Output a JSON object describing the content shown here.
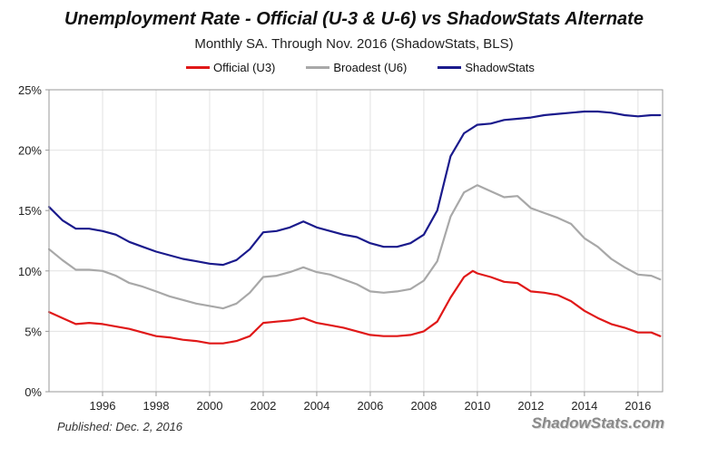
{
  "header": {
    "title": "Unemployment Rate - Official (U-3 & U-6) vs ShadowStats Alternate",
    "subtitle": "Monthly SA. Through Nov. 2016  (ShadowStats, BLS)"
  },
  "footer": {
    "published": "Published: Dec. 2, 2016",
    "brand": "ShadowStats.com"
  },
  "colors": {
    "u3": "#e01818",
    "u6": "#a8a8a8",
    "shadow": "#1a1a8c"
  },
  "chart_data": {
    "type": "line",
    "title": "Unemployment Rate - Official (U-3 & U-6) vs ShadowStats Alternate",
    "subtitle": "Monthly SA. Through Nov. 2016  (ShadowStats, BLS)",
    "xlabel": "",
    "ylabel": "",
    "xlim": [
      1994.0,
      2016.92
    ],
    "ylim": [
      0,
      25
    ],
    "grid": true,
    "legend": "top",
    "x_ticks": [
      1996,
      1998,
      2000,
      2002,
      2004,
      2006,
      2008,
      2010,
      2012,
      2014,
      2016
    ],
    "x_tick_labels": [
      "1996",
      "1998",
      "2000",
      "2002",
      "2004",
      "2006",
      "2008",
      "2010",
      "2012",
      "2014",
      "2016"
    ],
    "y_ticks": [
      0,
      5,
      10,
      15,
      20,
      25
    ],
    "y_tick_labels": [
      "0%",
      "5%",
      "10%",
      "15%",
      "20%",
      "25%"
    ],
    "series": [
      {
        "name": "Official (U3)",
        "x": [
          1994.0,
          1994.5,
          1995.0,
          1995.5,
          1996.0,
          1996.5,
          1997.0,
          1997.5,
          1998.0,
          1998.5,
          1999.0,
          1999.5,
          2000.0,
          2000.5,
          2001.0,
          2001.5,
          2002.0,
          2002.5,
          2003.0,
          2003.5,
          2004.0,
          2004.5,
          2005.0,
          2005.5,
          2006.0,
          2006.5,
          2007.0,
          2007.5,
          2008.0,
          2008.5,
          2009.0,
          2009.5,
          2009.83,
          2010.0,
          2010.5,
          2011.0,
          2011.5,
          2012.0,
          2012.5,
          2013.0,
          2013.5,
          2014.0,
          2014.5,
          2015.0,
          2015.5,
          2016.0,
          2016.5,
          2016.83
        ],
        "values": [
          6.6,
          6.1,
          5.6,
          5.7,
          5.6,
          5.4,
          5.2,
          4.9,
          4.6,
          4.5,
          4.3,
          4.2,
          4.0,
          4.0,
          4.2,
          4.6,
          5.7,
          5.8,
          5.9,
          6.1,
          5.7,
          5.5,
          5.3,
          5.0,
          4.7,
          4.6,
          4.6,
          4.7,
          5.0,
          5.8,
          7.8,
          9.5,
          10.0,
          9.8,
          9.5,
          9.1,
          9.0,
          8.3,
          8.2,
          8.0,
          7.5,
          6.7,
          6.1,
          5.6,
          5.3,
          4.9,
          4.9,
          4.6
        ]
      },
      {
        "name": "Broadest (U6)",
        "x": [
          1994.0,
          1994.5,
          1995.0,
          1995.5,
          1996.0,
          1996.5,
          1997.0,
          1997.5,
          1998.0,
          1998.5,
          1999.0,
          1999.5,
          2000.0,
          2000.5,
          2001.0,
          2001.5,
          2002.0,
          2002.5,
          2003.0,
          2003.5,
          2004.0,
          2004.5,
          2005.0,
          2005.5,
          2006.0,
          2006.5,
          2007.0,
          2007.5,
          2008.0,
          2008.5,
          2009.0,
          2009.5,
          2010.0,
          2010.5,
          2011.0,
          2011.5,
          2012.0,
          2012.5,
          2013.0,
          2013.5,
          2014.0,
          2014.5,
          2015.0,
          2015.5,
          2016.0,
          2016.5,
          2016.83
        ],
        "values": [
          11.8,
          10.9,
          10.1,
          10.1,
          10.0,
          9.6,
          9.0,
          8.7,
          8.3,
          7.9,
          7.6,
          7.3,
          7.1,
          6.9,
          7.3,
          8.2,
          9.5,
          9.6,
          9.9,
          10.3,
          9.9,
          9.7,
          9.3,
          8.9,
          8.3,
          8.2,
          8.3,
          8.5,
          9.2,
          10.8,
          14.5,
          16.5,
          17.1,
          16.6,
          16.1,
          16.2,
          15.2,
          14.8,
          14.4,
          13.9,
          12.7,
          12.0,
          11.0,
          10.3,
          9.7,
          9.6,
          9.3
        ]
      },
      {
        "name": "ShadowStats",
        "x": [
          1994.0,
          1994.5,
          1995.0,
          1995.5,
          1996.0,
          1996.5,
          1997.0,
          1997.5,
          1998.0,
          1998.5,
          1999.0,
          1999.5,
          2000.0,
          2000.5,
          2001.0,
          2001.5,
          2002.0,
          2002.5,
          2003.0,
          2003.5,
          2004.0,
          2004.5,
          2005.0,
          2005.5,
          2006.0,
          2006.5,
          2007.0,
          2007.5,
          2008.0,
          2008.5,
          2009.0,
          2009.5,
          2010.0,
          2010.5,
          2011.0,
          2011.5,
          2012.0,
          2012.5,
          2013.0,
          2013.5,
          2014.0,
          2014.5,
          2015.0,
          2015.5,
          2016.0,
          2016.5,
          2016.83
        ],
        "values": [
          15.3,
          14.2,
          13.5,
          13.5,
          13.3,
          13.0,
          12.4,
          12.0,
          11.6,
          11.3,
          11.0,
          10.8,
          10.6,
          10.5,
          10.9,
          11.8,
          13.2,
          13.3,
          13.6,
          14.1,
          13.6,
          13.3,
          13.0,
          12.8,
          12.3,
          12.0,
          12.0,
          12.3,
          13.0,
          15.0,
          19.5,
          21.4,
          22.1,
          22.2,
          22.5,
          22.6,
          22.7,
          22.9,
          23.0,
          23.1,
          23.2,
          23.2,
          23.1,
          22.9,
          22.8,
          22.9,
          22.9
        ]
      }
    ]
  }
}
